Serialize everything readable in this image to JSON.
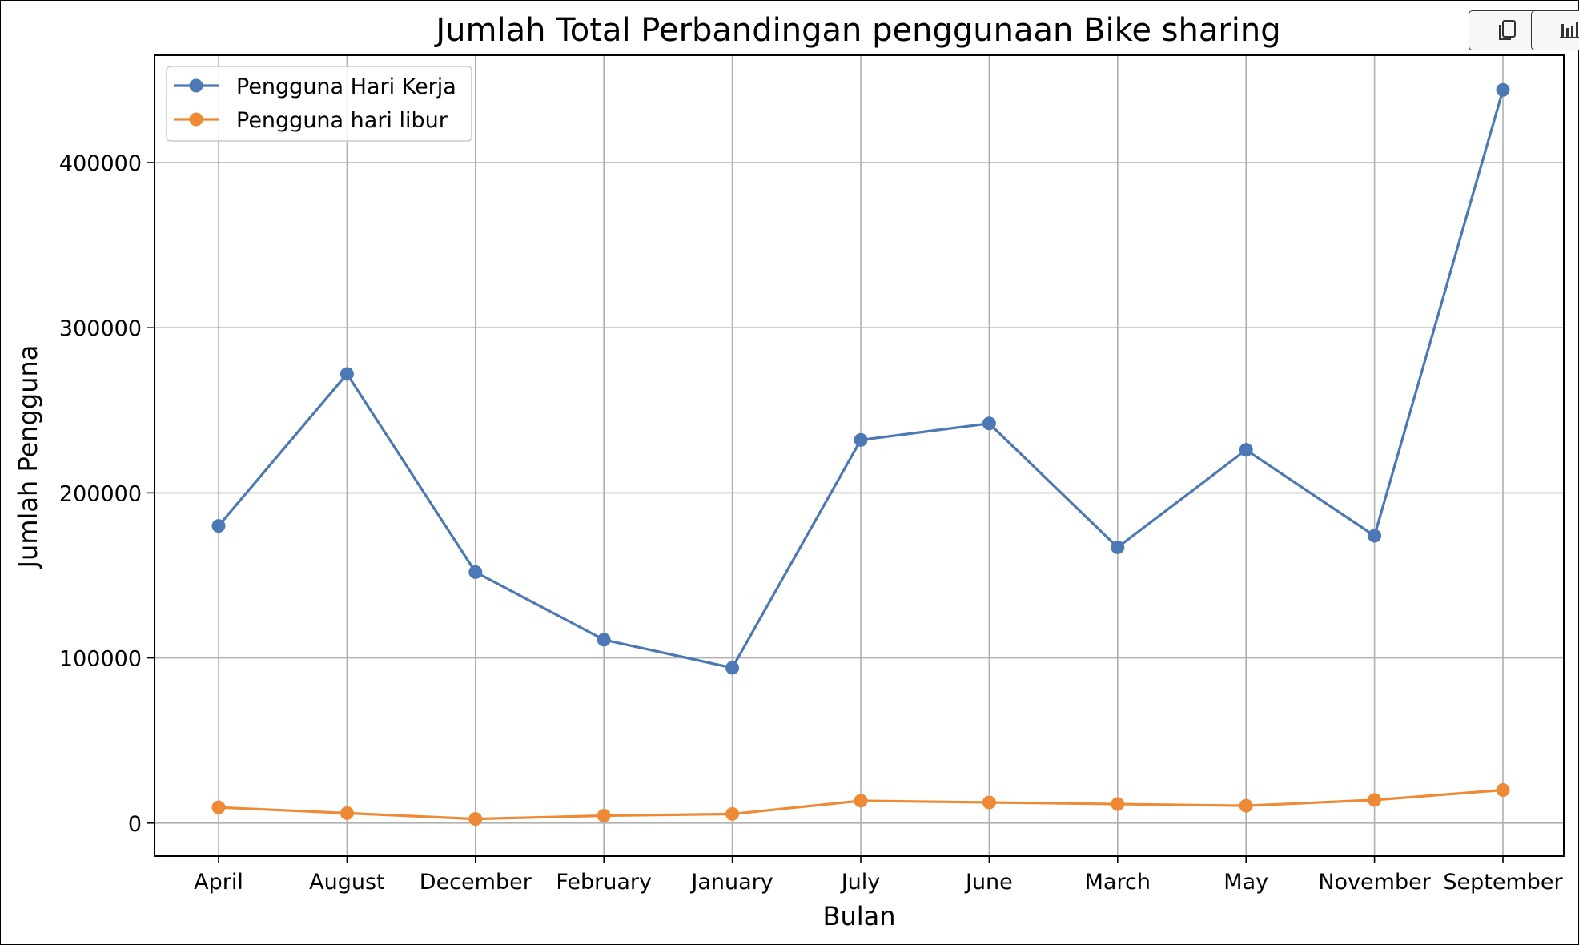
{
  "toolbar": {
    "copy_icon": "copy-icon",
    "chart_icon": "bar-chart-icon"
  },
  "chart_data": {
    "type": "line",
    "title": "Jumlah Total Perbandingan penggunaan Bike sharing",
    "xlabel": "Bulan",
    "ylabel": "Jumlah Pengguna",
    "categories": [
      "April",
      "August",
      "December",
      "February",
      "January",
      "July",
      "June",
      "March",
      "May",
      "November",
      "September"
    ],
    "series": [
      {
        "name": "Pengguna Hari Kerja",
        "color": "#4c78b5",
        "values": [
          180000,
          272000,
          152000,
          111000,
          94000,
          232000,
          242000,
          167000,
          226000,
          174000,
          444000
        ]
      },
      {
        "name": "Pengguna hari libur",
        "color": "#ee8a35",
        "values": [
          9500,
          6000,
          2500,
          4500,
          5500,
          13500,
          12500,
          11500,
          10500,
          14000,
          20000
        ]
      }
    ],
    "yticks": [
      0,
      100000,
      200000,
      300000,
      400000
    ],
    "ylim": [
      -20000,
      465000
    ],
    "grid": true,
    "legend": "top-left"
  }
}
